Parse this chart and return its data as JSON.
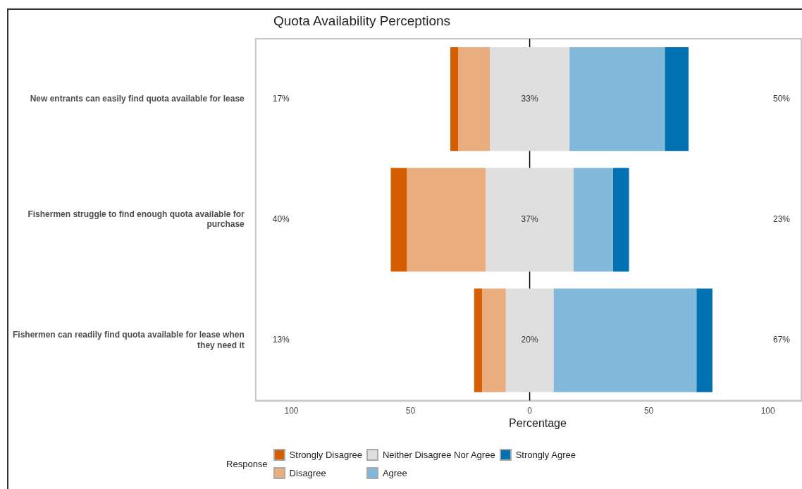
{
  "chart_data": {
    "type": "bar",
    "orientation": "horizontal",
    "title": "Quota Availability Perceptions",
    "xlabel": "Percentage",
    "legend_title": "Response",
    "categories": [
      "New entrants can easily find quota available for lease",
      "Fishermen struggle to find enough quota available for purchase",
      "Fishermen can readily find quota available for lease when they need it"
    ],
    "series": [
      {
        "name": "Strongly Disagree",
        "color": "#d55e00",
        "values": [
          3.3,
          6.7,
          3.3
        ],
        "base": [
          -33.3,
          -58.3,
          -23.3
        ]
      },
      {
        "name": "Disagree",
        "color": "#eaae7e",
        "values": [
          13.3,
          33.3,
          10
        ],
        "base": [
          -30,
          -51.7,
          -20
        ]
      },
      {
        "name": "Neither Disagree Nor Agree",
        "color": "#dfdfdf",
        "values": [
          33.3,
          36.7,
          20
        ],
        "base": [
          -16.7,
          -18.3,
          -10
        ]
      },
      {
        "name": "Agree",
        "color": "#82b8d9",
        "values": [
          40,
          16.7,
          60
        ],
        "base": [
          16.7,
          18.3,
          10
        ]
      },
      {
        "name": "Strongly Agree",
        "color": "#0072b2",
        "values": [
          10,
          6.7,
          6.7
        ],
        "base": [
          56.7,
          35,
          70
        ]
      }
    ],
    "xlim": [
      -115,
      114
    ],
    "xticks": [
      {
        "value": -100,
        "label": "100"
      },
      {
        "value": -50,
        "label": "50"
      },
      0,
      50,
      100
    ],
    "ref_lines": [
      {
        "axis": "x",
        "value": 0,
        "color": "#000000"
      }
    ],
    "annotations": [
      "17%",
      "33%",
      "50%",
      "40%",
      "37%",
      "23%",
      "13%",
      "20%",
      "67%"
    ],
    "grid": false,
    "legend": "bottom"
  }
}
